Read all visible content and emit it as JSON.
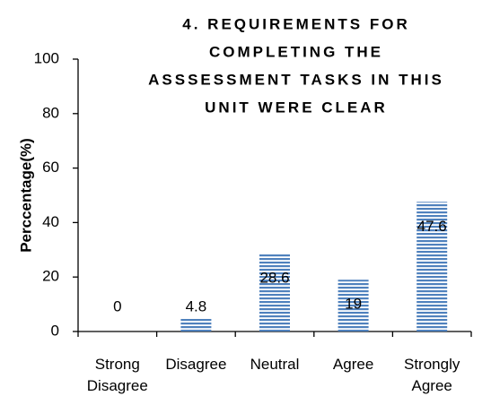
{
  "chart_data": {
    "type": "bar",
    "title": [
      "4. REQUIREMENTS FOR",
      "COMPLETING THE",
      "ASSSESSMENT TASKS IN THIS",
      "UNIT WERE CLEAR"
    ],
    "y_label": "Perccentage(%)",
    "categories": [
      "Strong Disagree",
      "Disagree",
      "Neutral",
      "Agree",
      "Strongly Agree"
    ],
    "values": [
      0,
      4.8,
      28.6,
      19,
      47.6
    ],
    "color": "#4f81bd",
    "ylim": [
      0,
      100
    ],
    "yticks": [
      0,
      20,
      40,
      60,
      80,
      100
    ],
    "grid": false
  }
}
